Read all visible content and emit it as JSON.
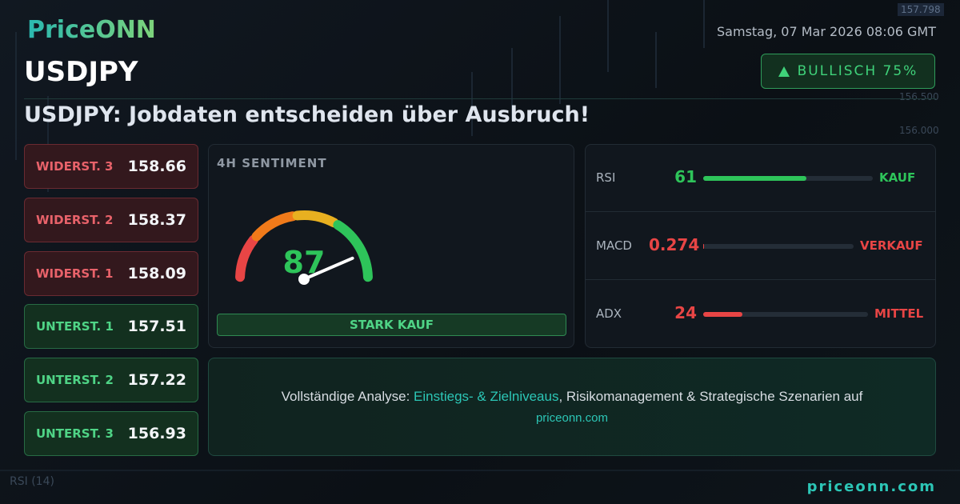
{
  "header": {
    "logo": "PriceONN",
    "date": "Samstag, 07 Mar 2026 08:06 GMT",
    "symbol": "USDJPY",
    "badge": "BULLISCH 75%",
    "headline": "USDJPY: Jobdaten entscheiden über Ausbruch!"
  },
  "levels": [
    {
      "label": "WIDERST. 3",
      "value": 158.66,
      "kind": "resistance"
    },
    {
      "label": "WIDERST. 2",
      "value": 158.37,
      "kind": "resistance"
    },
    {
      "label": "WIDERST. 1",
      "value": 158.09,
      "kind": "resistance"
    },
    {
      "label": "UNTERST. 1",
      "value": 157.51,
      "kind": "support"
    },
    {
      "label": "UNTERST. 2",
      "value": 157.22,
      "kind": "support"
    },
    {
      "label": "UNTERST. 3",
      "value": 156.93,
      "kind": "support"
    }
  ],
  "sentiment": {
    "title": "4H SENTIMENT",
    "value": 87,
    "gauge_range": [
      0,
      100
    ],
    "signal": "STARK KAUF"
  },
  "indicators": {
    "bar_range": [
      0,
      100
    ],
    "rows": [
      {
        "name": "RSI",
        "value": 61,
        "signal": "KAUF",
        "tone": "buy"
      },
      {
        "name": "MACD",
        "value": 0.274,
        "signal": "VERKAUF",
        "tone": "sell"
      },
      {
        "name": "ADX",
        "value": 24,
        "signal": "MITTEL",
        "tone": "sell"
      }
    ]
  },
  "cta": {
    "lead": "Vollständige Analyse:",
    "highlight": "Einstiegs- & Zielniveaus",
    "rest": ", Risikomanagement & Strategische Szenarien auf",
    "link": "priceonn.com"
  },
  "footer": {
    "site": "priceonn.com"
  },
  "background": {
    "price_tag": "157.798",
    "axis_labels": [
      "156.500",
      "156.000"
    ],
    "pane_label": "RSI (14)"
  }
}
